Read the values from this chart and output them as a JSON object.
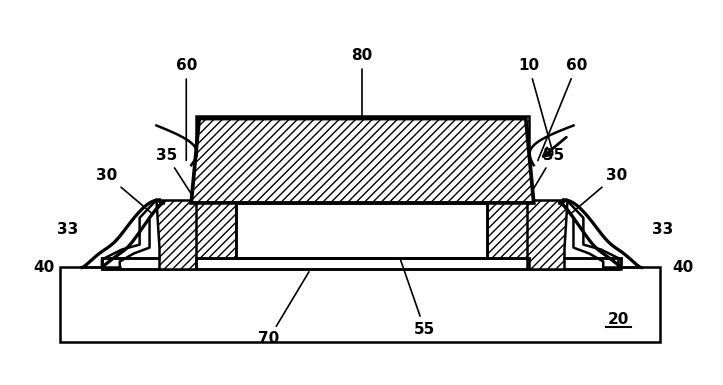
{
  "bg_color": "#ffffff",
  "line_color": "#000000",
  "fig_width": 7.23,
  "fig_height": 3.85,
  "label_fontsize": 11,
  "label_fontweight": "bold",
  "lw": 1.8
}
